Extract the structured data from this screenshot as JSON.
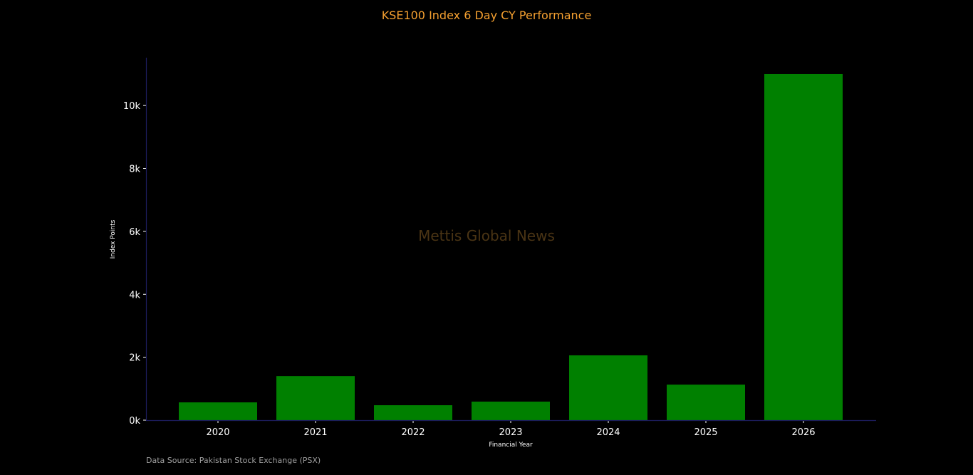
{
  "chart_data": {
    "type": "bar",
    "title": "KSE100 Index 6 Day CY Performance",
    "xlabel": "Financial Year",
    "ylabel": "Index Points",
    "categories": [
      "2020",
      "2021",
      "2022",
      "2023",
      "2024",
      "2025",
      "2026"
    ],
    "values": [
      566,
      1400,
      475,
      590,
      2060,
      1130,
      11000
    ],
    "ylim": [
      0,
      11520
    ],
    "yticks": [
      0,
      2000,
      4000,
      6000,
      8000,
      10000
    ],
    "ytick_labels": [
      "0k",
      "2k",
      "4k",
      "6k",
      "8k",
      "10k"
    ],
    "grid": false,
    "bar_color": "#008000",
    "title_color": "#f5a030",
    "axis_color": "#1c1c5c",
    "watermark": "Mettis Global News",
    "source": "Data Source: Pakistan Stock Exchange (PSX)"
  }
}
